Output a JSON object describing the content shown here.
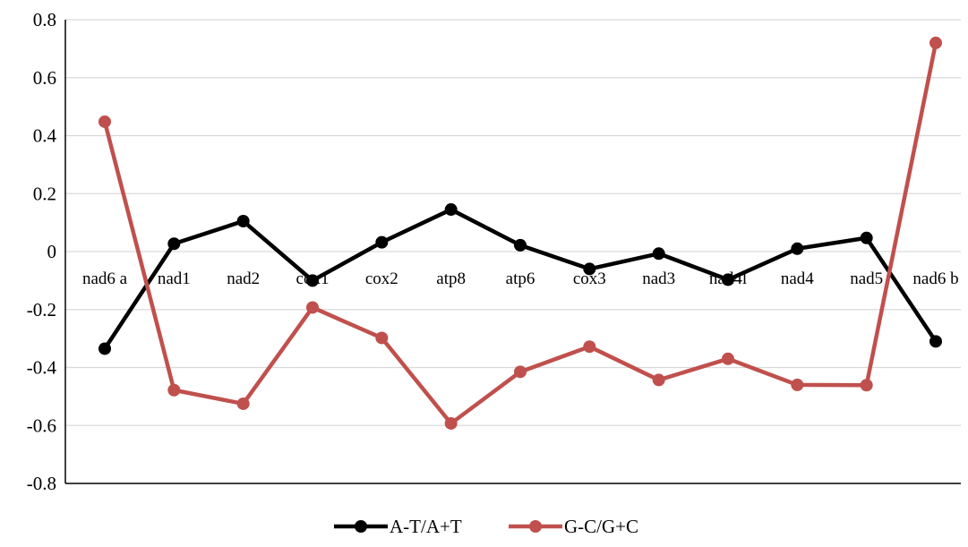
{
  "chart_data": {
    "type": "line",
    "title": "",
    "xlabel": "",
    "ylabel": "",
    "categories": [
      "nad6 a",
      "nad1",
      "nad2",
      "cox1",
      "cox2",
      "atp8",
      "atp6",
      "cox3",
      "nad3",
      "nad4l",
      "nad4",
      "nad5",
      "nad6 b"
    ],
    "ylim": [
      -0.8,
      0.8
    ],
    "yticks": [
      0.8,
      0.6,
      0.4,
      0.2,
      0,
      -0.2,
      -0.4,
      -0.6,
      -0.8
    ],
    "ytick_labels": [
      "0.8",
      "0.6",
      "0.4",
      "0.2",
      "0",
      "-0.2",
      "-0.4",
      "-0.6",
      "-0.8"
    ],
    "grid": true,
    "legend_position": "bottom",
    "series": [
      {
        "name": "A-T/A+T",
        "color": "#000000",
        "values": [
          -0.335,
          0.027,
          0.105,
          -0.1,
          0.032,
          0.145,
          0.022,
          -0.06,
          -0.007,
          -0.097,
          0.01,
          0.047,
          -0.31
        ]
      },
      {
        "name": "G-C/G+C",
        "color": "#c0504d",
        "values": [
          0.448,
          -0.478,
          -0.525,
          -0.193,
          -0.298,
          -0.593,
          -0.415,
          -0.328,
          -0.443,
          -0.37,
          -0.46,
          -0.461,
          0.72
        ]
      }
    ]
  }
}
